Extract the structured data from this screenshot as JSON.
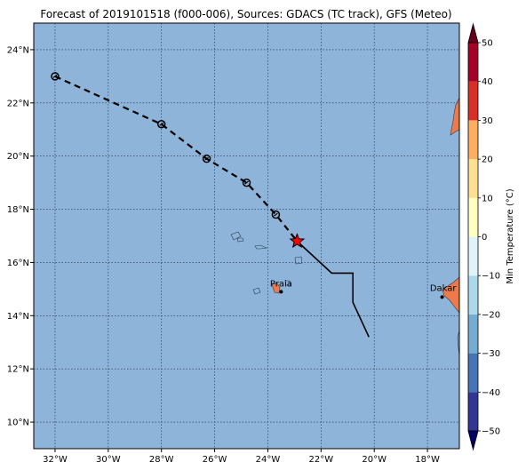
{
  "title": "Forecast of 2019101518 (f000-006), Sources: GDACS (TC track), GFS (Meteo)",
  "colors": {
    "ocean": "#8fb4d9",
    "land": "#ee7a4a",
    "track": "#000000",
    "current_marker": "#ff0000"
  },
  "map": {
    "lon_range": [
      -32.8,
      -16.8
    ],
    "lat_range": [
      9.0,
      25.0
    ],
    "x_ticks": [
      {
        "value": -32,
        "label": "32°W"
      },
      {
        "value": -30,
        "label": "30°W"
      },
      {
        "value": -28,
        "label": "28°W"
      },
      {
        "value": -26,
        "label": "26°W"
      },
      {
        "value": -24,
        "label": "24°W"
      },
      {
        "value": -22,
        "label": "22°W"
      },
      {
        "value": -20,
        "label": "20°W"
      },
      {
        "value": -18,
        "label": "18°W"
      }
    ],
    "y_ticks": [
      {
        "value": 10,
        "label": "10°N"
      },
      {
        "value": 12,
        "label": "12°N"
      },
      {
        "value": 14,
        "label": "14°N"
      },
      {
        "value": 16,
        "label": "16°N"
      },
      {
        "value": 18,
        "label": "18°N"
      },
      {
        "value": 20,
        "label": "20°N"
      },
      {
        "value": 22,
        "label": "22°N"
      },
      {
        "value": 24,
        "label": "24°N"
      }
    ],
    "gridlines": true
  },
  "track": {
    "forecast_points": [
      [
        -32.0,
        23.0
      ],
      [
        -28.0,
        21.2
      ],
      [
        -26.3,
        19.9
      ],
      [
        -24.8,
        19.0
      ],
      [
        -23.7,
        17.8
      ]
    ],
    "current_position": [
      -22.9,
      16.8
    ],
    "history": [
      [
        -22.9,
        16.8
      ],
      [
        -21.6,
        15.6
      ],
      [
        -20.8,
        15.6
      ],
      [
        -20.8,
        14.5
      ],
      [
        -20.2,
        13.2
      ]
    ]
  },
  "cities": [
    {
      "name": "Praia",
      "lon": -23.5,
      "lat": 14.9
    },
    {
      "name": "Dakar",
      "lon": -17.45,
      "lat": 14.7
    }
  ],
  "colorbar": {
    "label": "Min Temperature (°C)",
    "ticks": [
      "50",
      "40",
      "30",
      "20",
      "10",
      "0",
      "−10",
      "−20",
      "−30",
      "−40",
      "−50"
    ],
    "bands": [
      {
        "from": -50,
        "to": -40,
        "color": "#313695"
      },
      {
        "from": -40,
        "to": -30,
        "color": "#4575b4"
      },
      {
        "from": -30,
        "to": -20,
        "color": "#74add1"
      },
      {
        "from": -20,
        "to": -10,
        "color": "#abd9e9"
      },
      {
        "from": -10,
        "to": 0,
        "color": "#e0f3f8"
      },
      {
        "from": 0,
        "to": 10,
        "color": "#ffffbf"
      },
      {
        "from": 10,
        "to": 20,
        "color": "#fee090"
      },
      {
        "from": 20,
        "to": 30,
        "color": "#fdae61"
      },
      {
        "from": 30,
        "to": 40,
        "color": "#d73027"
      },
      {
        "from": 40,
        "to": 50,
        "color": "#a50026"
      }
    ],
    "under_color": "#000066",
    "over_color": "#67001f"
  }
}
